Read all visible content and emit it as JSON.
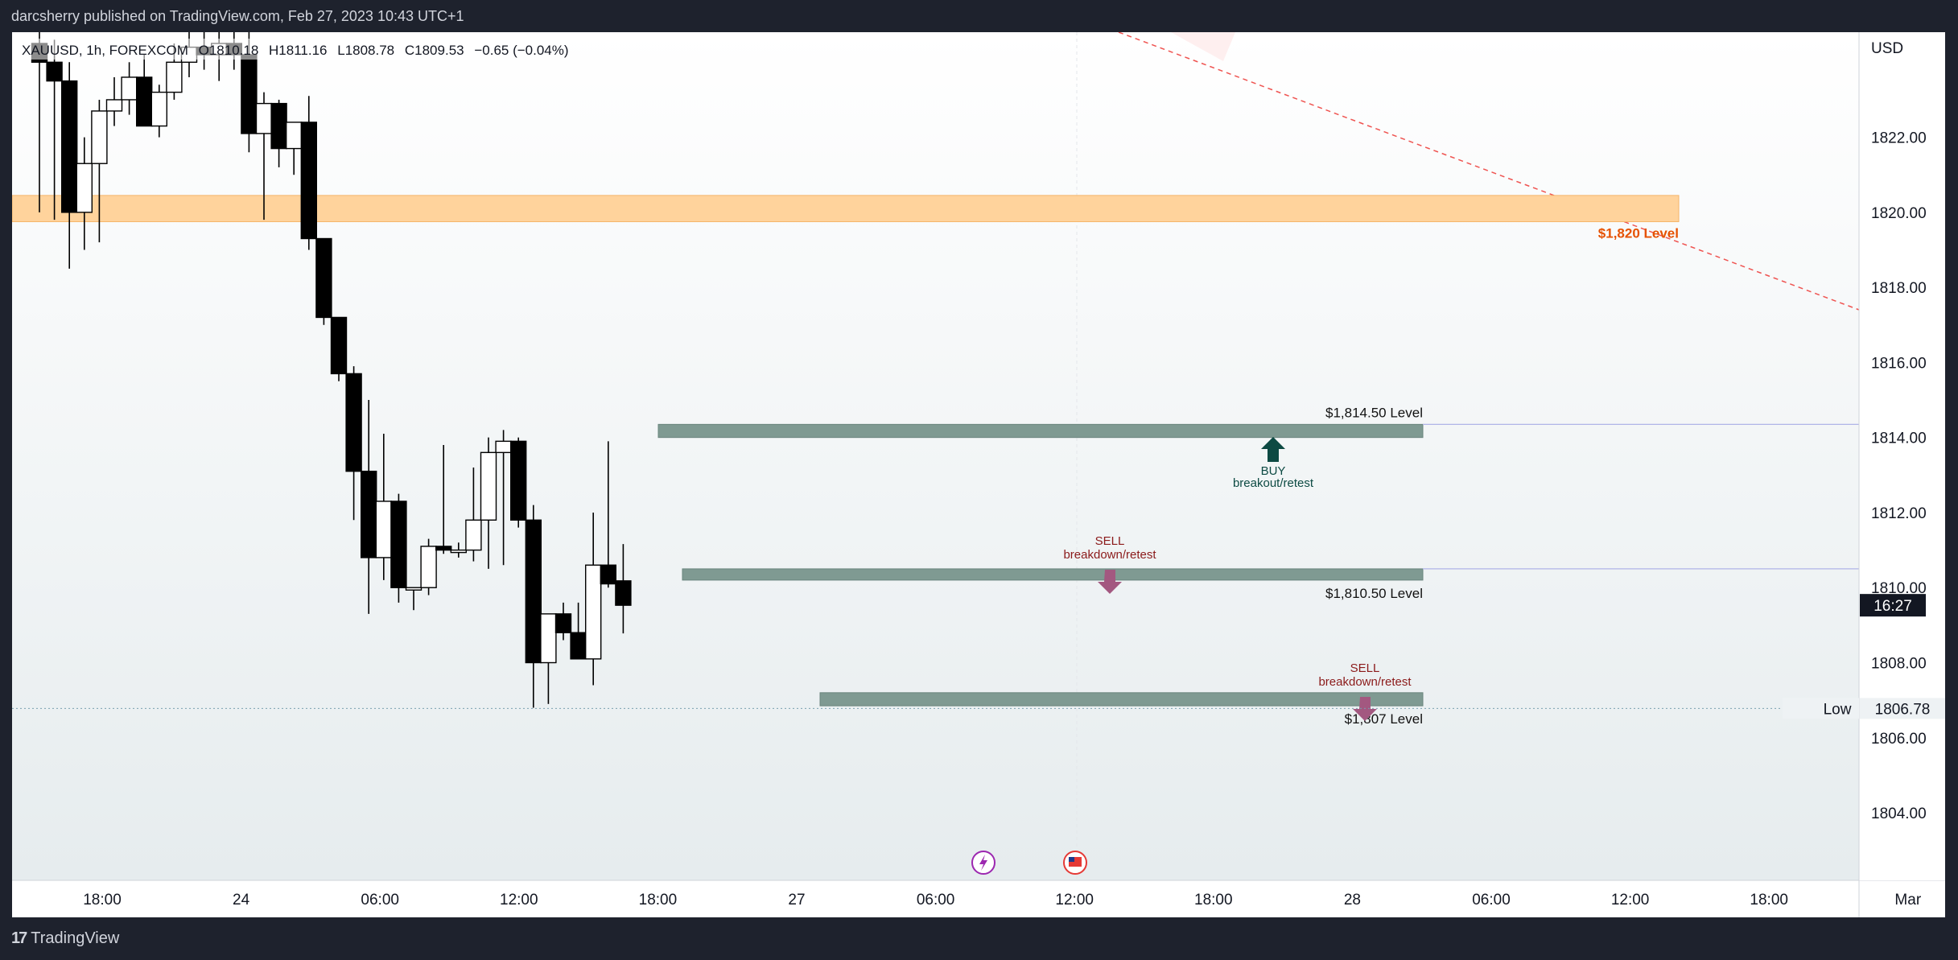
{
  "header": {
    "published_by": "darcsherry published on TradingView.com, Feb 27, 2023 10:43 UTC+1"
  },
  "legend": {
    "symbol": "XAUUSD, 1h, FOREXCOM",
    "open": "O1810.18",
    "high": "H1811.16",
    "low": "L1808.78",
    "close": "C1809.53",
    "change": "−0.65 (−0.04%)"
  },
  "footer": {
    "brand": "TradingView",
    "logo_icon": "tradingview-logo-icon"
  },
  "colors": {
    "background": "#1e222d",
    "chart_bg": "#ffffff",
    "bull_body": "#ffffff",
    "bear_body": "#000000",
    "orange_zone": "#ffd39c",
    "level_zone": "#7f9a92",
    "orange_text": "#e65100",
    "buy_arrow": "#0d4a43",
    "sell_arrow": "#a35880",
    "sell_text": "#8b1a1a"
  },
  "chart_data": {
    "type": "candlestick",
    "title": "XAUUSD, 1h, FOREXCOM",
    "currency": "USD",
    "ylim": [
      1802.2,
      1824.8
    ],
    "y_ticks": [
      "1804.00",
      "1806.00",
      "1808.00",
      "1810.00",
      "1812.00",
      "1814.00",
      "1816.00",
      "1818.00",
      "1820.00",
      "1822.00"
    ],
    "x_ticks": [
      "18:00",
      "24",
      "06:00",
      "12:00",
      "18:00",
      "27",
      "06:00",
      "12:00",
      "18:00",
      "28",
      "06:00",
      "12:00",
      "18:00",
      "Mar"
    ],
    "current_price_time": "16:27",
    "low_label": "Low",
    "low_price": "1806.78",
    "candles": [
      {
        "o": 1824.5,
        "h": 1825.2,
        "l": 1820.0,
        "c": 1824.0
      },
      {
        "o": 1824.0,
        "h": 1824.6,
        "l": 1819.8,
        "c": 1823.5
      },
      {
        "o": 1823.5,
        "h": 1824.0,
        "l": 1818.5,
        "c": 1820.0
      },
      {
        "o": 1820.0,
        "h": 1822.0,
        "l": 1819.0,
        "c": 1821.3
      },
      {
        "o": 1821.3,
        "h": 1823.0,
        "l": 1819.2,
        "c": 1822.7
      },
      {
        "o": 1822.7,
        "h": 1823.6,
        "l": 1822.3,
        "c": 1823.0
      },
      {
        "o": 1823.0,
        "h": 1824.0,
        "l": 1822.6,
        "c": 1823.6
      },
      {
        "o": 1823.6,
        "h": 1824.2,
        "l": 1822.3,
        "c": 1822.3
      },
      {
        "o": 1822.3,
        "h": 1823.4,
        "l": 1822.0,
        "c": 1823.2
      },
      {
        "o": 1823.2,
        "h": 1824.5,
        "l": 1823.0,
        "c": 1824.0
      },
      {
        "o": 1824.0,
        "h": 1824.8,
        "l": 1823.6,
        "c": 1824.4
      },
      {
        "o": 1824.4,
        "h": 1825.0,
        "l": 1823.8,
        "c": 1824.2
      },
      {
        "o": 1824.2,
        "h": 1825.0,
        "l": 1823.5,
        "c": 1824.5
      },
      {
        "o": 1824.5,
        "h": 1825.0,
        "l": 1823.8,
        "c": 1824.2
      },
      {
        "o": 1824.2,
        "h": 1825.0,
        "l": 1821.6,
        "c": 1822.1
      },
      {
        "o": 1822.1,
        "h": 1823.2,
        "l": 1819.8,
        "c": 1822.9
      },
      {
        "o": 1822.9,
        "h": 1823.0,
        "l": 1821.2,
        "c": 1821.7
      },
      {
        "o": 1821.7,
        "h": 1822.4,
        "l": 1821.0,
        "c": 1822.4
      },
      {
        "o": 1822.4,
        "h": 1823.1,
        "l": 1819.0,
        "c": 1819.3
      },
      {
        "o": 1819.3,
        "h": 1819.3,
        "l": 1817.0,
        "c": 1817.2
      },
      {
        "o": 1817.2,
        "h": 1817.2,
        "l": 1815.5,
        "c": 1815.7
      },
      {
        "o": 1815.7,
        "h": 1815.9,
        "l": 1811.8,
        "c": 1813.1
      },
      {
        "o": 1813.1,
        "h": 1815.0,
        "l": 1809.3,
        "c": 1810.8
      },
      {
        "o": 1810.8,
        "h": 1814.1,
        "l": 1810.2,
        "c": 1812.3
      },
      {
        "o": 1812.3,
        "h": 1812.5,
        "l": 1809.6,
        "c": 1810.0
      },
      {
        "o": 1810.0,
        "h": 1810.0,
        "l": 1809.4,
        "c": 1810.0
      },
      {
        "o": 1810.0,
        "h": 1811.3,
        "l": 1809.8,
        "c": 1811.1
      },
      {
        "o": 1811.1,
        "h": 1813.8,
        "l": 1810.9,
        "c": 1811.0
      },
      {
        "o": 1811.0,
        "h": 1811.2,
        "l": 1810.8,
        "c": 1811.0
      },
      {
        "o": 1811.0,
        "h": 1813.2,
        "l": 1810.7,
        "c": 1811.8
      },
      {
        "o": 1811.8,
        "h": 1814.0,
        "l": 1810.5,
        "c": 1813.6
      },
      {
        "o": 1813.6,
        "h": 1814.2,
        "l": 1810.6,
        "c": 1813.9
      },
      {
        "o": 1813.9,
        "h": 1814.0,
        "l": 1811.6,
        "c": 1811.8
      },
      {
        "o": 1811.8,
        "h": 1812.2,
        "l": 1806.8,
        "c": 1808.0
      },
      {
        "o": 1808.0,
        "h": 1809.3,
        "l": 1806.9,
        "c": 1809.3
      },
      {
        "o": 1809.3,
        "h": 1809.6,
        "l": 1808.6,
        "c": 1808.8
      },
      {
        "o": 1808.8,
        "h": 1809.6,
        "l": 1808.1,
        "c": 1808.1
      },
      {
        "o": 1808.1,
        "h": 1812.0,
        "l": 1807.4,
        "c": 1810.6
      },
      {
        "o": 1810.6,
        "h": 1813.9,
        "l": 1810.0,
        "c": 1810.1
      },
      {
        "o": 1810.18,
        "h": 1811.16,
        "l": 1808.78,
        "c": 1809.53
      }
    ],
    "zones": [
      {
        "name": "$1,820 Level",
        "low": 1819.75,
        "high": 1820.45,
        "type": "orange"
      },
      {
        "name": "$1,814.50 Level",
        "low": 1814.0,
        "high": 1814.35,
        "type": "green"
      },
      {
        "name": "$1,810.50 Level",
        "low": 1810.2,
        "high": 1810.5,
        "type": "green"
      },
      {
        "name": "$1,807 Level",
        "low": 1806.85,
        "high": 1807.2,
        "type": "green"
      }
    ],
    "annotations": {
      "buy_line1": "BUY",
      "buy_line2": "breakout/retest",
      "sell1_line1": "SELL",
      "sell1_line2": "breakdown/retest",
      "sell2_line1": "SELL",
      "sell2_line2": "breakdown/retest",
      "zone_label_1820": "$1,820 Level",
      "zone_label_1814": "$1,814.50 Level",
      "zone_label_1810": "$1,810.50 Level",
      "zone_label_1807": "$1,807 Level"
    },
    "event_icons": [
      "lightning-event-icon",
      "us-flag-event-icon"
    ]
  }
}
